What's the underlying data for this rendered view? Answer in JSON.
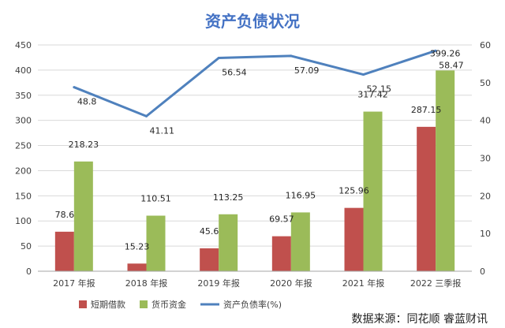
{
  "colors": {
    "bar_short": "#c0504d",
    "bar_cash": "#9bbb59",
    "line": "#4f81bd",
    "title": "#4472c4",
    "grid": "#d9d9d9",
    "axis": "#a6a6a6"
  },
  "source_text": "数据来源：同花顺  睿蓝财讯",
  "chart_data": {
    "type": "bar",
    "title": "资产负债状况",
    "categories": [
      "2017 年报",
      "2018 年报",
      "2019 年报",
      "2020 年报",
      "2021 年报",
      "2022 三季报"
    ],
    "series": [
      {
        "name": "短期借款",
        "type": "bar",
        "axis": "left",
        "values": [
          78.6,
          15.23,
          45.6,
          69.57,
          125.96,
          287.15
        ]
      },
      {
        "name": "货币资金",
        "type": "bar",
        "axis": "left",
        "values": [
          218.23,
          110.51,
          113.25,
          116.95,
          317.42,
          399.26
        ]
      },
      {
        "name": "资产负债率(%)",
        "type": "line",
        "axis": "right",
        "values": [
          48.8,
          41.11,
          56.54,
          57.09,
          52.15,
          58.47
        ]
      }
    ],
    "left_axis": {
      "min": 0,
      "max": 450,
      "ticks": [
        0,
        50,
        100,
        150,
        200,
        250,
        300,
        350,
        400,
        450
      ]
    },
    "right_axis": {
      "min": 0,
      "max": 60,
      "ticks": [
        0,
        10,
        20,
        30,
        40,
        50,
        60
      ]
    },
    "grid": true,
    "legend_position": "bottom-left"
  }
}
